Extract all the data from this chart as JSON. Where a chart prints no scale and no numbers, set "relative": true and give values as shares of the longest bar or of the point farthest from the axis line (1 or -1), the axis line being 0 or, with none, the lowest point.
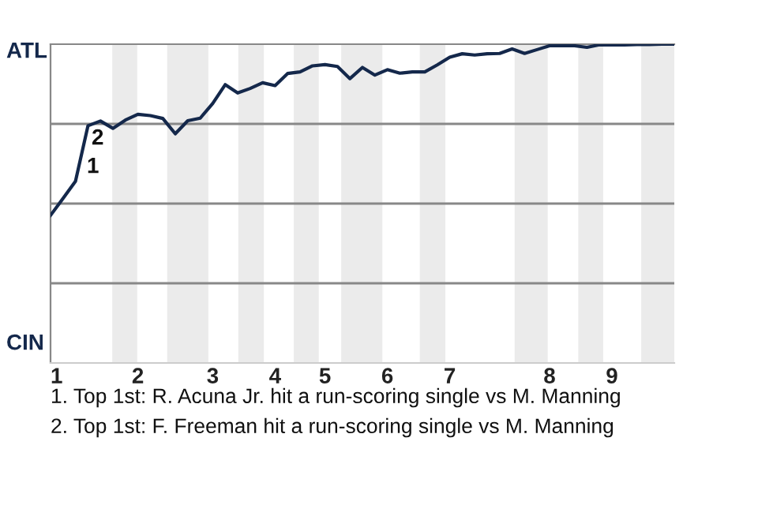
{
  "chart_data": {
    "type": "line",
    "relative": true,
    "categories": [
      "1",
      null,
      null,
      null,
      null,
      null,
      null,
      "2",
      null,
      null,
      null,
      null,
      null,
      "3",
      null,
      null,
      null,
      null,
      "4",
      null,
      null,
      null,
      "5",
      null,
      null,
      null,
      null,
      "6",
      null,
      null,
      null,
      null,
      "7",
      null,
      null,
      null,
      null,
      null,
      null,
      null,
      "8",
      null,
      null,
      null,
      null,
      "9",
      null,
      null,
      null,
      null,
      null
    ],
    "series": [
      {
        "color": "#14284b",
        "values": [
          0.463,
          0.516,
          0.57,
          0.744,
          0.759,
          0.736,
          0.762,
          0.78,
          0.776,
          0.767,
          0.719,
          0.76,
          0.768,
          0.814,
          0.873,
          0.847,
          0.861,
          0.879,
          0.87,
          0.908,
          0.913,
          0.932,
          0.936,
          0.93,
          0.892,
          0.927,
          0.903,
          0.92,
          0.909,
          0.913,
          0.913,
          0.935,
          0.959,
          0.97,
          0.966,
          0.97,
          0.971,
          0.985,
          0.971,
          0.983,
          0.995,
          0.995,
          0.995,
          0.99,
          0.998,
          0.998,
          0.998,
          0.999,
          0.999,
          1.0,
          1.0
        ]
      }
    ],
    "ref_lines": [
      {
        "axis": "y",
        "value": 0.25,
        "color": "#888888"
      },
      {
        "axis": "y",
        "value": 0.5,
        "color": "#888888"
      },
      {
        "axis": "y",
        "value": 0.75,
        "color": "#888888"
      }
    ],
    "annotations": [
      "ATL",
      "CIN",
      "1",
      "2",
      "1. Top 1st: R. Acuna Jr. hit a run-scoring single vs M. Manning",
      "2. Top 1st: F. Freeman hit a run-scoring single vs M. Manning"
    ]
  }
}
